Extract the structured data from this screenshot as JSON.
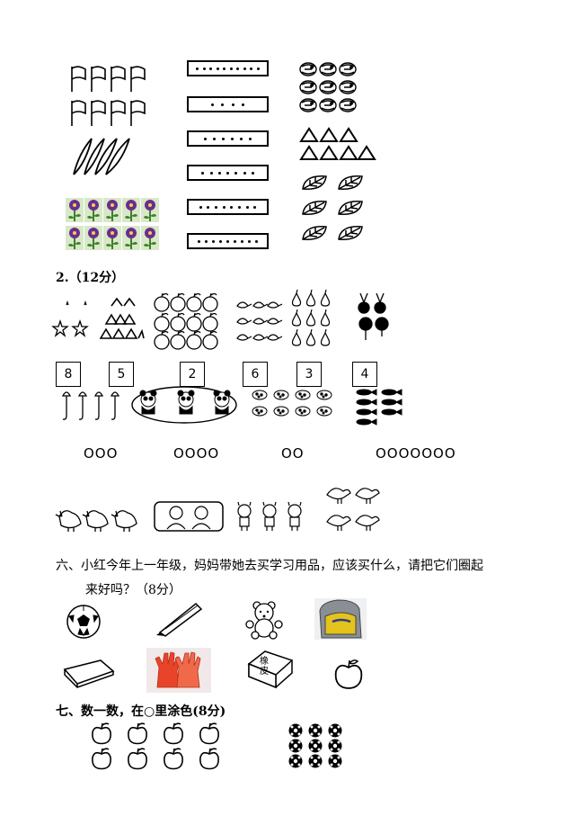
{
  "section2": {
    "label": "2.（12分）"
  },
  "number_boxes": [
    "8",
    "5",
    "2",
    "6",
    "3",
    "4"
  ],
  "circle_groups": [
    "OOO",
    "OOOO",
    "OO",
    "OOOOOOO"
  ],
  "question6": {
    "line1": "六、小红今年上一年级，妈妈带她去买学习用品，应该买什么，请把它们圈起",
    "line2": "来好吗？（8分）",
    "eraser_text": "橡皮"
  },
  "question7": {
    "heading": "七、数一数，在○里涂色(8分)"
  },
  "colors": {
    "flower_petal": "#6a2d8f",
    "flower_leaf": "#3f7f2a",
    "glove": "#e8442a",
    "bag_yellow": "#e5c21c",
    "bag_grey": "#8a8f96"
  }
}
